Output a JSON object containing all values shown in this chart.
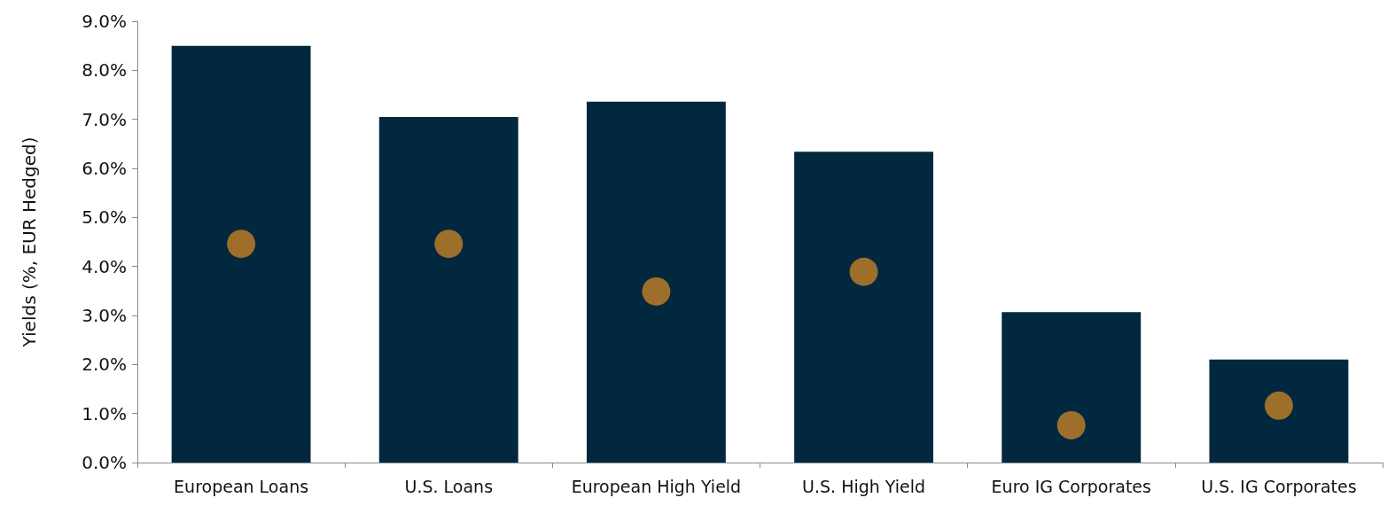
{
  "chart_data": {
    "type": "bar",
    "ylabel": "Yields (%, EUR Hedged)",
    "categories": [
      "European Loans",
      "U.S. Loans",
      "European High Yield",
      "U.S. High Yield",
      "Euro IG Corporates",
      "U.S. IG Corporates"
    ],
    "series": [
      {
        "color": "#02283f",
        "values": [
          8.5,
          7.05,
          7.36,
          6.34,
          3.07,
          2.1
        ]
      },
      {
        "type": "scatter",
        "color": "#9d6f2b",
        "marker": "circle",
        "x": [
          "European Loans",
          "U.S. Loans",
          "European High Yield",
          "U.S. High Yield",
          "Euro IG Corporates",
          "U.S. IG Corporates"
        ],
        "values": [
          4.46,
          4.46,
          3.49,
          3.89,
          0.76,
          1.16
        ]
      }
    ],
    "ylim": [
      0,
      9
    ],
    "yticks": [
      {
        "value": 0,
        "label": "0.0%"
      },
      {
        "value": 1,
        "label": "1.0%"
      },
      {
        "value": 2,
        "label": "2.0%"
      },
      {
        "value": 3,
        "label": "3.0%"
      },
      {
        "value": 4,
        "label": "4.0%"
      },
      {
        "value": 5,
        "label": "5.0%"
      },
      {
        "value": 6,
        "label": "6.0%"
      },
      {
        "value": 7,
        "label": "7.0%"
      },
      {
        "value": 8,
        "label": "8.0%"
      },
      {
        "value": 9,
        "label": "9.0%"
      }
    ],
    "grid": false
  }
}
